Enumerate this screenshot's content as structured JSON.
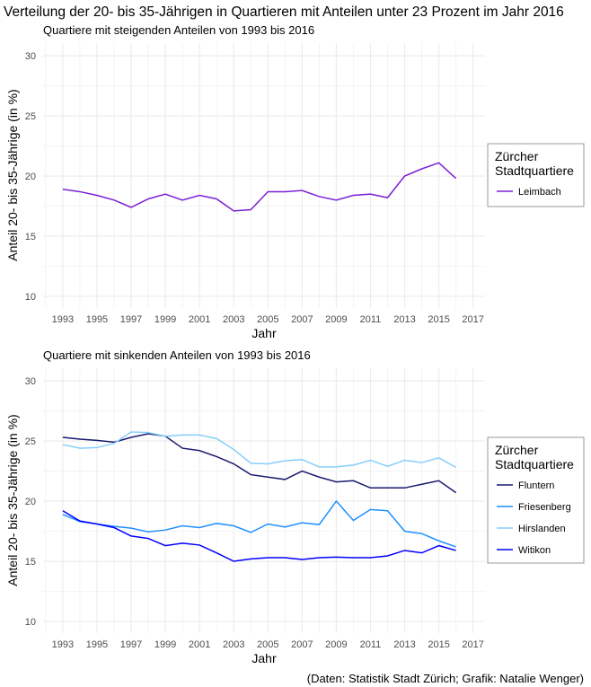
{
  "title": "Verteilung der 20- bis 35-Jährigen in Quartieren mit Anteilen unter 23 Prozent im Jahr 2016",
  "caption": "(Daten: Statistik Stadt Zürich; Grafik: Natalie Wenger)",
  "chart_data": [
    {
      "type": "line",
      "subtitle": "Quartiere mit steigenden Anteilen von 1993 bis 2016",
      "xlabel": "Jahr",
      "ylabel": "Anteil 20- bis 35-Jährige (in %)",
      "xlim": [
        1993,
        2017
      ],
      "ylim": [
        10,
        30
      ],
      "xticks": [
        1993,
        1995,
        1997,
        1999,
        2001,
        2003,
        2005,
        2007,
        2009,
        2011,
        2013,
        2015,
        2017
      ],
      "yticks": [
        10,
        15,
        20,
        25,
        30
      ],
      "grid": true,
      "legend": {
        "title_line1": "Zürcher",
        "title_line2": "Stadtquartiere",
        "placement": "right"
      },
      "x": [
        1993,
        1994,
        1995,
        1996,
        1997,
        1998,
        1999,
        2000,
        2001,
        2002,
        2003,
        2004,
        2005,
        2006,
        2007,
        2008,
        2009,
        2010,
        2011,
        2012,
        2013,
        2014,
        2015,
        2016
      ],
      "series": [
        {
          "name": "Leimbach",
          "color": "#7B1FD6",
          "values": [
            18.9,
            18.7,
            18.4,
            18.0,
            17.4,
            18.1,
            18.5,
            18.0,
            18.4,
            18.1,
            17.1,
            17.2,
            18.7,
            18.7,
            18.8,
            18.3,
            18.0,
            18.4,
            18.5,
            18.2,
            20.0,
            20.6,
            21.1,
            19.8
          ]
        }
      ]
    },
    {
      "type": "line",
      "subtitle": "Quartiere mit sinkenden Anteilen von 1993 bis 2016",
      "xlabel": "Jahr",
      "ylabel": "Anteil 20- bis 35-Jährige (in %)",
      "xlim": [
        1993,
        2017
      ],
      "ylim": [
        10,
        30
      ],
      "xticks": [
        1993,
        1995,
        1997,
        1999,
        2001,
        2003,
        2005,
        2007,
        2009,
        2011,
        2013,
        2015,
        2017
      ],
      "yticks": [
        10,
        15,
        20,
        25,
        30
      ],
      "grid": true,
      "legend": {
        "title_line1": "Zürcher",
        "title_line2": "Stadtquartiere",
        "placement": "right"
      },
      "x": [
        1993,
        1994,
        1995,
        1996,
        1997,
        1998,
        1999,
        2000,
        2001,
        2002,
        2003,
        2004,
        2005,
        2006,
        2007,
        2008,
        2009,
        2010,
        2011,
        2012,
        2013,
        2014,
        2015,
        2016
      ],
      "series": [
        {
          "name": "Fluntern",
          "color": "#191970",
          "values": [
            25.3,
            25.15,
            25.05,
            24.9,
            25.3,
            25.6,
            25.4,
            24.4,
            24.2,
            23.7,
            23.1,
            22.2,
            22.0,
            21.8,
            22.5,
            22.0,
            21.6,
            21.7,
            21.1,
            21.1,
            21.1,
            21.4,
            21.7,
            20.7
          ]
        },
        {
          "name": "Friesenberg",
          "color": "#1E90FF",
          "values": [
            18.9,
            18.3,
            18.1,
            17.9,
            17.75,
            17.45,
            17.6,
            17.95,
            17.8,
            18.15,
            17.95,
            17.4,
            18.1,
            17.85,
            18.2,
            18.05,
            20.0,
            18.4,
            19.3,
            19.2,
            17.5,
            17.3,
            16.7,
            16.2
          ]
        },
        {
          "name": "Hirslanden",
          "color": "#87CEFA",
          "values": [
            24.7,
            24.4,
            24.45,
            24.8,
            25.75,
            25.7,
            25.4,
            25.5,
            25.5,
            25.2,
            24.3,
            23.15,
            23.1,
            23.35,
            23.45,
            22.85,
            22.85,
            23.0,
            23.4,
            22.9,
            23.4,
            23.2,
            23.6,
            22.8
          ]
        },
        {
          "name": "Witikon",
          "color": "#0000FF",
          "values": [
            19.2,
            18.35,
            18.1,
            17.8,
            17.1,
            16.9,
            16.3,
            16.5,
            16.35,
            15.7,
            15.0,
            15.2,
            15.3,
            15.3,
            15.15,
            15.3,
            15.35,
            15.3,
            15.3,
            15.45,
            15.9,
            15.7,
            16.3,
            15.9
          ]
        }
      ]
    }
  ]
}
